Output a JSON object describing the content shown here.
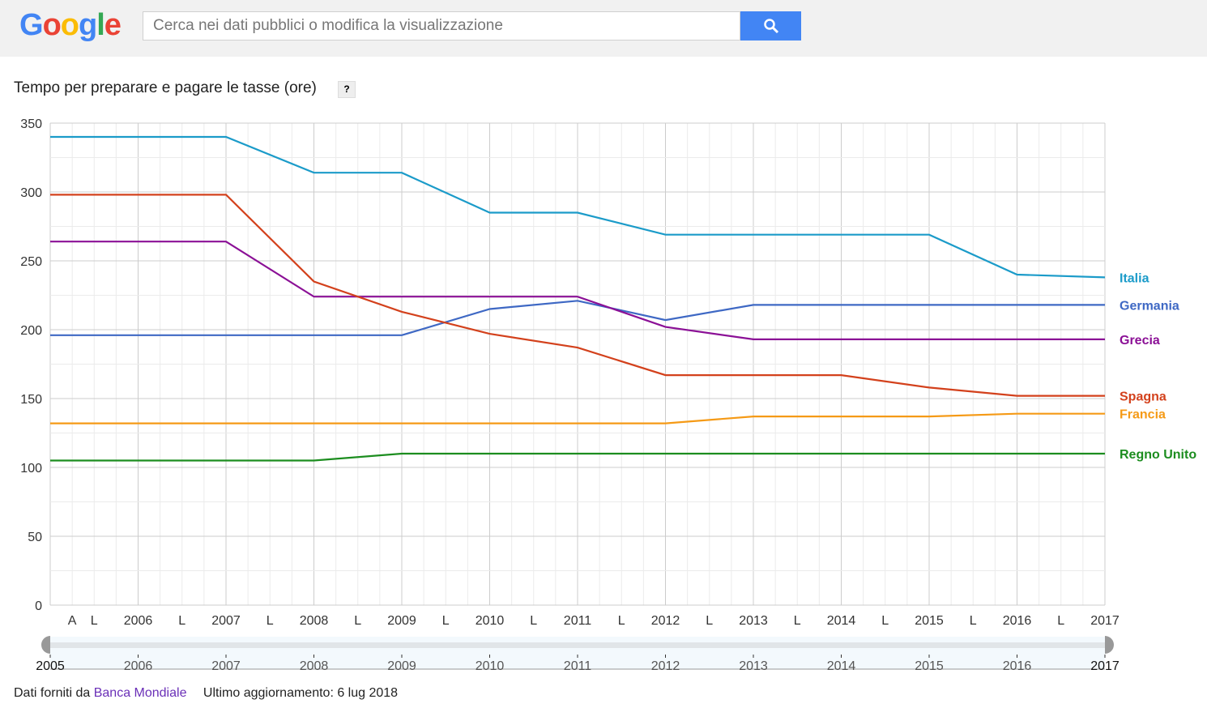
{
  "header": {
    "logo": "Google",
    "search_placeholder": "Cerca nei dati pubblici o modifica la visualizzazione"
  },
  "help_label": "?",
  "footer": {
    "source_prefix": "Dati forniti da",
    "source_link": "Banca Mondiale",
    "updated": "Ultimo aggiornamento: 6 lug 2018"
  },
  "chart_data": {
    "type": "line",
    "title": "Tempo per preparare e pagare le tasse (ore)",
    "xlabel": "",
    "ylabel": "",
    "xlim": [
      2005,
      2017
    ],
    "ylim": [
      0,
      350
    ],
    "yticks": [
      0,
      50,
      100,
      150,
      200,
      250,
      300,
      350
    ],
    "xtick_labels": [
      {
        "x": 2005.25,
        "label": "A"
      },
      {
        "x": 2005.5,
        "label": "L"
      },
      {
        "x": 2006,
        "label": "2006"
      },
      {
        "x": 2006.5,
        "label": "L"
      },
      {
        "x": 2007,
        "label": "2007"
      },
      {
        "x": 2007.5,
        "label": "L"
      },
      {
        "x": 2008,
        "label": "2008"
      },
      {
        "x": 2008.5,
        "label": "L"
      },
      {
        "x": 2009,
        "label": "2009"
      },
      {
        "x": 2009.5,
        "label": "L"
      },
      {
        "x": 2010,
        "label": "2010"
      },
      {
        "x": 2010.5,
        "label": "L"
      },
      {
        "x": 2011,
        "label": "2011"
      },
      {
        "x": 2011.5,
        "label": "L"
      },
      {
        "x": 2012,
        "label": "2012"
      },
      {
        "x": 2012.5,
        "label": "L"
      },
      {
        "x": 2013,
        "label": "2013"
      },
      {
        "x": 2013.5,
        "label": "L"
      },
      {
        "x": 2014,
        "label": "2014"
      },
      {
        "x": 2014.5,
        "label": "L"
      },
      {
        "x": 2015,
        "label": "2015"
      },
      {
        "x": 2015.5,
        "label": "L"
      },
      {
        "x": 2016,
        "label": "2016"
      },
      {
        "x": 2016.5,
        "label": "L"
      },
      {
        "x": 2017,
        "label": "2017"
      }
    ],
    "slider_labels": [
      "2005",
      "2006",
      "2007",
      "2008",
      "2009",
      "2010",
      "2011",
      "2012",
      "2013",
      "2014",
      "2015",
      "2016",
      "2017"
    ],
    "grid": true,
    "legend": "right-end-labels",
    "x": [
      2005,
      2006,
      2007,
      2008,
      2009,
      2010,
      2011,
      2012,
      2013,
      2014,
      2015,
      2016,
      2017
    ],
    "series": [
      {
        "name": "Italia",
        "color": "#1b9bc9",
        "values": [
          340,
          340,
          340,
          314,
          314,
          285,
          285,
          269,
          269,
          269,
          269,
          240,
          238
        ]
      },
      {
        "name": "Germania",
        "color": "#3e68c4",
        "values": [
          196,
          196,
          196,
          196,
          196,
          215,
          221,
          207,
          218,
          218,
          218,
          218,
          218
        ]
      },
      {
        "name": "Grecia",
        "color": "#8b1096",
        "values": [
          264,
          264,
          264,
          224,
          224,
          224,
          224,
          202,
          193,
          193,
          193,
          193,
          193
        ]
      },
      {
        "name": "Spagna",
        "color": "#d3411c",
        "values": [
          298,
          298,
          298,
          235,
          213,
          197,
          187,
          167,
          167,
          167,
          158,
          152,
          152
        ]
      },
      {
        "name": "Francia",
        "color": "#f59a16",
        "values": [
          132,
          132,
          132,
          132,
          132,
          132,
          132,
          132,
          137,
          137,
          137,
          139,
          139
        ]
      },
      {
        "name": "Regno Unito",
        "color": "#1c8d1f",
        "values": [
          105,
          105,
          105,
          105,
          110,
          110,
          110,
          110,
          110,
          110,
          110,
          110,
          110
        ]
      }
    ]
  }
}
